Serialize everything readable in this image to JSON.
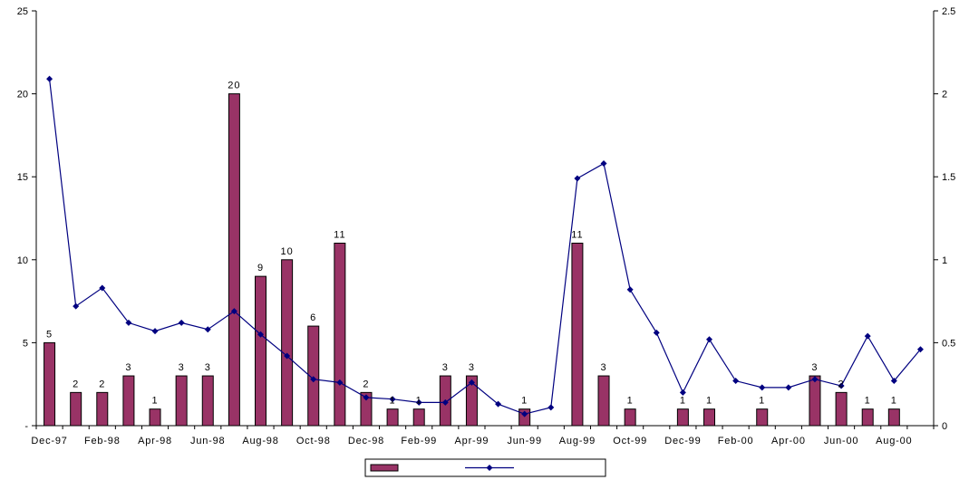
{
  "chart_data": {
    "type": "bar+line",
    "title": "",
    "xlabel": "",
    "ylabel": "",
    "y2label": "",
    "ylim": [
      0,
      25
    ],
    "y2lim": [
      0,
      2.5
    ],
    "yticks": [
      "-",
      "5",
      "10",
      "15",
      "20",
      "25"
    ],
    "y2ticks": [
      "0",
      "0.5",
      "1",
      "1.5",
      "2",
      "2.5"
    ],
    "grid": false,
    "legend": "bottom-center",
    "categories": [
      "Dec-97",
      "Jan-98",
      "Feb-98",
      "Mar-98",
      "Apr-98",
      "May-98",
      "Jun-98",
      "Jul-98",
      "Aug-98",
      "Sep-98",
      "Oct-98",
      "Nov-98",
      "Dec-98",
      "Jan-99",
      "Feb-99",
      "Mar-99",
      "Apr-99",
      "May-99",
      "Jun-99",
      "Jul-99",
      "Aug-99",
      "Sep-99",
      "Oct-99",
      "Nov-99",
      "Dec-99",
      "Jan-00",
      "Feb-00",
      "Mar-00",
      "Apr-00",
      "May-00",
      "Jun-00",
      "Jul-00",
      "Aug-00",
      "Sep-00"
    ],
    "xtick_labels": [
      "Dec-97",
      "Feb-98",
      "Apr-98",
      "Jun-98",
      "Aug-98",
      "Oct-98",
      "Dec-98",
      "Feb-99",
      "Apr-99",
      "Jun-99",
      "Aug-99",
      "Oct-99",
      "Dec-99",
      "Feb-00",
      "Apr-00",
      "Jun-00",
      "Aug-00"
    ],
    "xtick_indices": [
      0,
      2,
      4,
      6,
      8,
      10,
      12,
      14,
      16,
      18,
      20,
      22,
      24,
      26,
      28,
      30,
      32
    ],
    "series": [
      {
        "type": "bar",
        "axis": "left",
        "color": "#993366",
        "values": [
          5,
          2,
          2,
          3,
          1,
          3,
          3,
          20,
          9,
          10,
          6,
          11,
          2,
          1,
          1,
          3,
          3,
          null,
          1,
          null,
          11,
          3,
          1,
          null,
          1,
          1,
          null,
          1,
          null,
          3,
          2,
          1,
          1,
          null
        ],
        "labels": [
          "5",
          "2",
          "2",
          "3",
          "1",
          "3",
          "3",
          "20",
          "9",
          "10",
          "6",
          "11",
          "2",
          "1",
          "1",
          "3",
          "3",
          "",
          "1",
          "",
          "11",
          "3",
          "1",
          "",
          "1",
          "1",
          "",
          "1",
          "",
          "3",
          "2",
          "1",
          "1",
          ""
        ]
      },
      {
        "type": "line",
        "axis": "right",
        "color": "#000080",
        "values": [
          2.09,
          0.72,
          0.83,
          0.62,
          0.57,
          0.62,
          0.58,
          0.69,
          0.55,
          0.42,
          0.28,
          0.26,
          0.17,
          0.16,
          0.14,
          0.14,
          0.26,
          0.13,
          0.07,
          0.11,
          1.49,
          1.58,
          0.82,
          0.56,
          0.2,
          0.52,
          0.27,
          0.23,
          0.23,
          0.28,
          0.24,
          0.54,
          0.27,
          0.46
        ]
      }
    ]
  }
}
